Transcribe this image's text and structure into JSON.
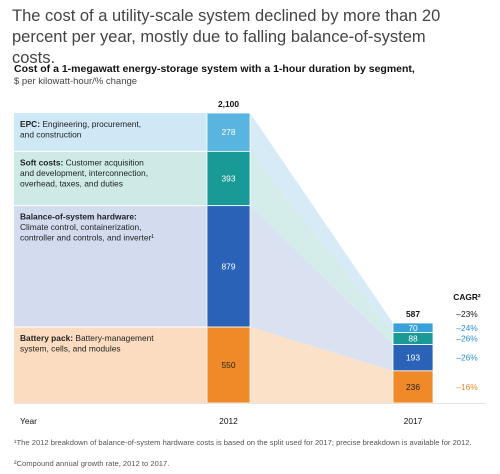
{
  "headline": "The cost of a utility-scale system declined by more than 20 percent per year, mostly due to falling balance-of-system costs.",
  "chart_data": {
    "type": "bar",
    "title": "Cost of a 1-megawatt energy-storage system with a 1-hour duration by segment,",
    "subtitle": "$ per kilowatt-hour/% change",
    "xlabel": "Year",
    "categories": [
      "2012",
      "2017"
    ],
    "totals": [
      "2,100",
      "587"
    ],
    "cagr_header": "CAGR²",
    "series": [
      {
        "name": "EPC",
        "label_bold": "EPC:",
        "label_rest": [
          " Engineering, procurement,",
          "and construction"
        ],
        "values": [
          278,
          70
        ],
        "cagr": "–24%",
        "color_2012": "#5ab4e0",
        "color_2017": "#3aa0d8",
        "band_color": "#cfe8f5"
      },
      {
        "name": "Soft costs",
        "label_bold": "Soft costs:",
        "label_rest": [
          " Customer acquisition",
          "and development, interconnection,",
          "overhead, taxes, and duties"
        ],
        "values": [
          393,
          88
        ],
        "cagr": "–26%",
        "color_2012": "#1a9a96",
        "color_2017": "#1a9a96",
        "band_color": "#cdeae6"
      },
      {
        "name": "Balance-of-system hardware",
        "label_bold": "Balance-of-system hardware:",
        "label_rest": [
          "Climate control, containerization,",
          "controller and controls, and inverter¹"
        ],
        "values": [
          879,
          193
        ],
        "cagr": "–26%",
        "color_2012": "#2a62b8",
        "color_2017": "#2a62b8",
        "band_color": "#d3dcef"
      },
      {
        "name": "Battery pack",
        "label_bold": "Battery pack:",
        "label_rest": [
          " Battery-management",
          "system, cells, and modules"
        ],
        "values": [
          550,
          236
        ],
        "cagr": "–16%",
        "color_2012": "#f08a28",
        "color_2017": "#f08a28",
        "band_color": "#fbdcc0"
      }
    ],
    "overall_cagr": "–23%"
  },
  "footnotes": [
    "¹The 2012 breakdown of balance-of-system hardware costs is based on the split used for 2017; precise breakdown is available for 2012.",
    "²Compound annual growth rate, 2012 to 2017."
  ],
  "colors": {
    "cagr_text": "#2a8fd0",
    "battery_cagr_text": "#f08a28"
  }
}
